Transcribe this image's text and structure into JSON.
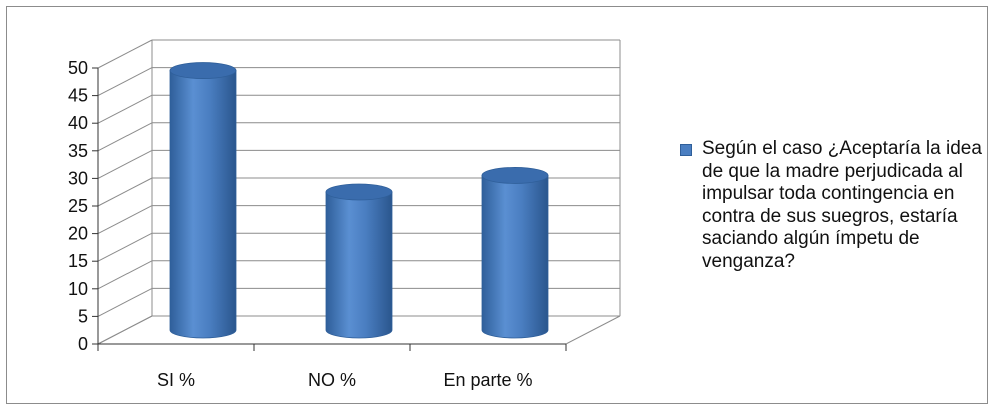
{
  "chart_data": {
    "type": "bar",
    "categories": [
      "SI %",
      "NO %",
      "En parte %"
    ],
    "series": [
      {
        "name": "Según el caso ¿Aceptaría la idea de que la madre perjudicada al impulsar toda contingencia en contra de sus suegros, estaría saciando algún  ímpetu de venganza?",
        "values": [
          47,
          25,
          28
        ]
      }
    ],
    "y_ticks": [
      "0",
      "5",
      "10",
      "15",
      "20",
      "25",
      "30",
      "35",
      "40",
      "45",
      "50"
    ],
    "ylim": [
      0,
      50
    ],
    "grid": true,
    "style_3d": "cylinder",
    "legend_position": "right",
    "colors": {
      "bar": "#4a7ec1",
      "bar_dark": "#2f5f9a",
      "bar_top": "#3a6cad",
      "grid": "#8c8c8c"
    }
  }
}
